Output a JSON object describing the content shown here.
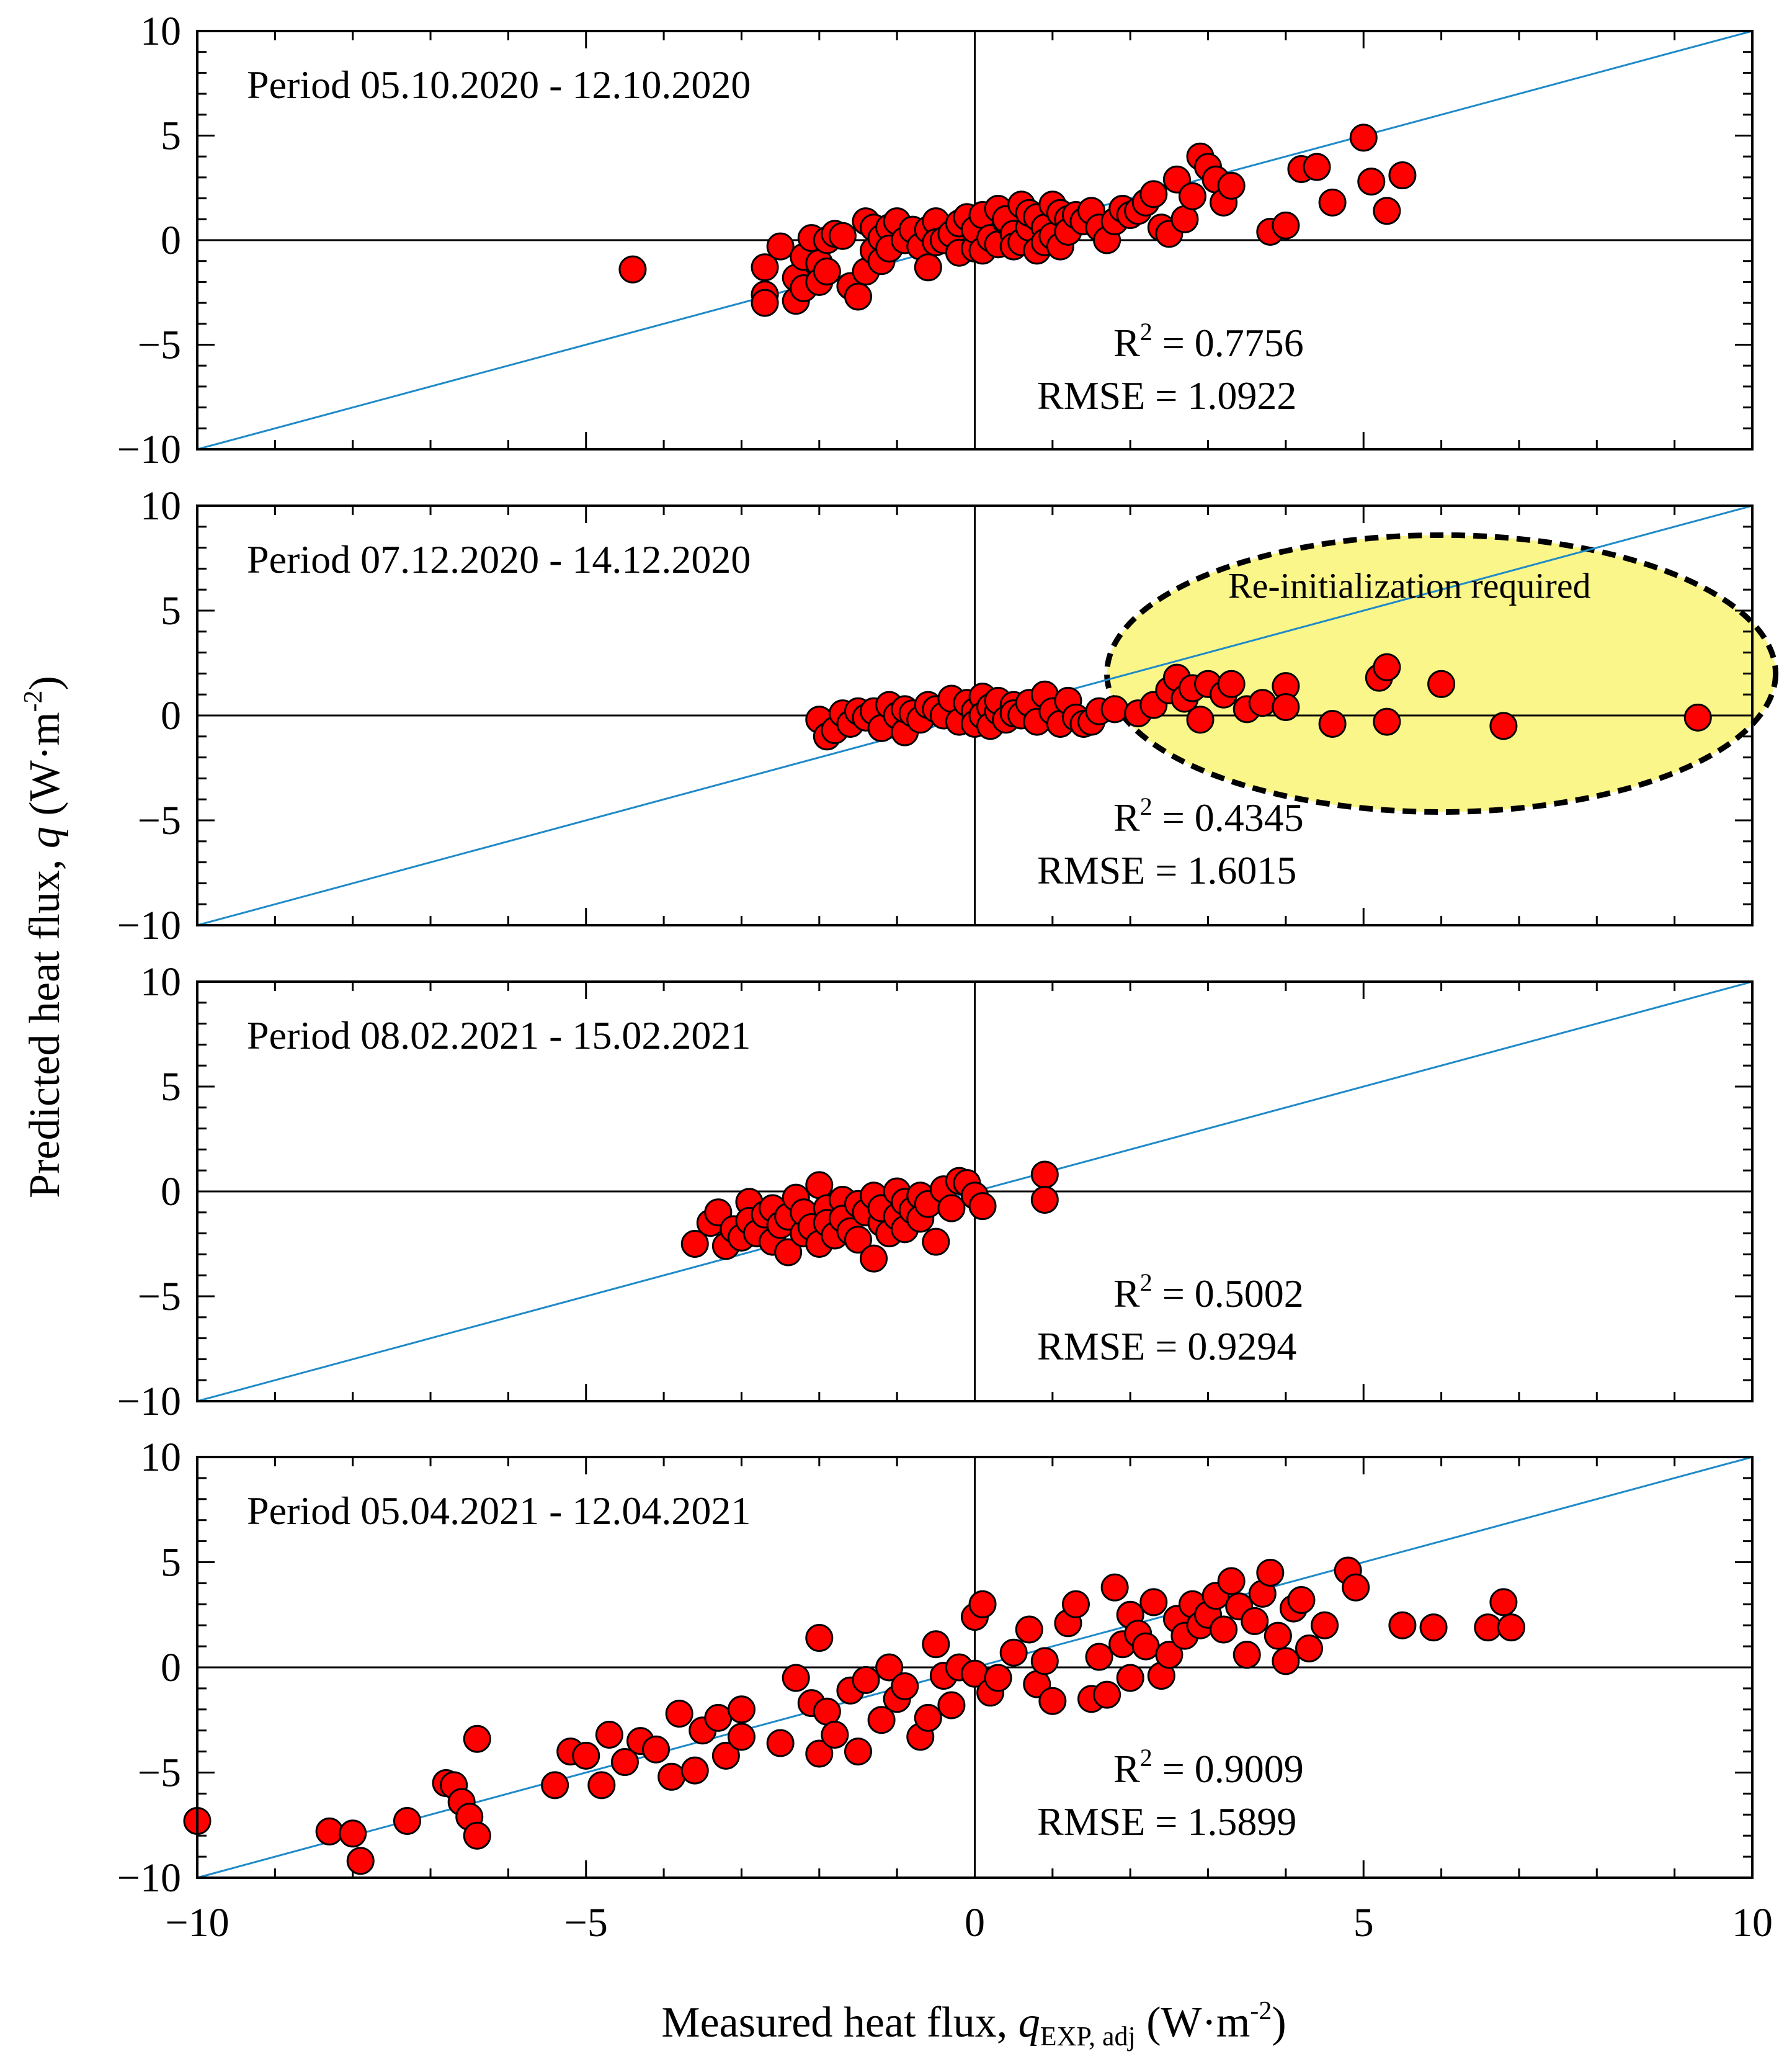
{
  "figure": {
    "ylabel_prefix": "Predicted heat flux, ",
    "ylabel_var": "q",
    "ylabel_unit": " (W·m",
    "ylabel_exp": "-2",
    "ylabel_close": ")",
    "xlabel_prefix": "Measured heat flux, ",
    "xlabel_var": "q",
    "xlabel_sub": "EXP, adj",
    "xlabel_unit": "  (W·m",
    "xlabel_exp": "-2",
    "xlabel_close": ")",
    "x_tick_labels": [
      "−10",
      "−5",
      "0",
      "5",
      "10"
    ],
    "y_tick_labels": [
      "10",
      "5",
      "0",
      "−5",
      "−10"
    ]
  },
  "colors": {
    "marker": "#ff0000",
    "identity_line": "#1f8ac8",
    "callout_fill": "#fbf68a",
    "axis": "#000000"
  },
  "chart_data": [
    {
      "type": "scatter",
      "title": "Period 05.10.2020 - 12.10.2020",
      "xlim": [
        -10,
        10
      ],
      "ylim": [
        -10,
        10
      ],
      "r2_label": "R",
      "r2_exp": "2",
      "r2_value": " = 0.7756",
      "rmse_text": "RMSE = 1.0922",
      "x": [
        -4.4,
        -2.7,
        -2.7,
        -2.7,
        -2.5,
        -2.3,
        -2.3,
        -2.2,
        -2.2,
        -2.1,
        -2.0,
        -2.0,
        -1.9,
        -1.9,
        -1.8,
        -1.7,
        -1.6,
        -1.5,
        -1.4,
        -1.4,
        -1.3,
        -1.3,
        -1.2,
        -1.2,
        -1.1,
        -1.1,
        -1.0,
        -0.9,
        -0.8,
        -0.7,
        -0.6,
        -0.6,
        -0.5,
        -0.5,
        -0.4,
        -0.3,
        -0.2,
        -0.2,
        -0.1,
        0.0,
        0.0,
        0.1,
        0.1,
        0.2,
        0.3,
        0.3,
        0.4,
        0.4,
        0.5,
        0.5,
        0.6,
        0.6,
        0.7,
        0.7,
        0.8,
        0.8,
        0.9,
        0.9,
        1.0,
        1.0,
        1.1,
        1.1,
        1.2,
        1.2,
        1.3,
        1.4,
        1.5,
        1.6,
        1.7,
        1.8,
        1.9,
        2.0,
        2.1,
        2.2,
        2.3,
        2.4,
        2.5,
        2.6,
        2.7,
        2.8,
        2.9,
        3.0,
        3.1,
        3.2,
        3.3,
        3.8,
        4.0,
        4.2,
        4.4,
        4.6,
        5.0,
        5.1,
        5.3,
        5.5
      ],
      "y": [
        -1.4,
        -2.6,
        -3.0,
        -1.3,
        -0.3,
        -2.9,
        -1.8,
        -0.8,
        -2.3,
        0.1,
        -1.1,
        -2.0,
        0.0,
        -1.5,
        0.3,
        0.2,
        -2.2,
        -2.7,
        0.9,
        -1.5,
        0.6,
        -0.5,
        0.1,
        -1.0,
        0.6,
        -0.4,
        0.9,
        0.0,
        0.5,
        -0.3,
        0.5,
        -1.3,
        0.9,
        -0.1,
        0.0,
        0.3,
        -0.6,
        0.8,
        1.1,
        -0.4,
        0.5,
        1.2,
        -0.5,
        0.1,
        1.5,
        -0.2,
        0.9,
        1.0,
        0.3,
        -0.3,
        1.7,
        -0.1,
        0.6,
        1.3,
        -0.5,
        1.1,
        0.6,
        -0.1,
        1.7,
        0.2,
        1.3,
        -0.3,
        1.0,
        0.4,
        1.2,
        0.9,
        1.4,
        0.6,
        0.0,
        0.9,
        1.5,
        1.2,
        1.4,
        1.8,
        2.2,
        0.6,
        0.3,
        2.9,
        1.0,
        2.1,
        4.0,
        3.5,
        2.9,
        1.8,
        2.6,
        0.4,
        0.7,
        3.4,
        3.5,
        1.8,
        4.9,
        2.8,
        1.4,
        3.1
      ]
    },
    {
      "type": "scatter",
      "title": "Period 07.12.2020 - 14.12.2020",
      "xlim": [
        -10,
        10
      ],
      "ylim": [
        -10,
        10
      ],
      "r2_label": "R",
      "r2_exp": "2",
      "r2_value": " = 0.4345",
      "rmse_text": "RMSE = 1.6015",
      "annotation": "Re-initialization required",
      "x": [
        -2.0,
        -1.9,
        -1.8,
        -1.7,
        -1.6,
        -1.5,
        -1.4,
        -1.3,
        -1.2,
        -1.1,
        -1.0,
        -0.9,
        -0.9,
        -0.8,
        -0.7,
        -0.6,
        -0.5,
        -0.4,
        -0.3,
        -0.2,
        -0.1,
        0.0,
        0.0,
        0.1,
        0.1,
        0.2,
        0.2,
        0.3,
        0.3,
        0.4,
        0.5,
        0.5,
        0.6,
        0.7,
        0.8,
        0.9,
        1.0,
        1.1,
        1.2,
        1.3,
        1.4,
        1.5,
        1.6,
        1.8,
        2.1,
        2.3,
        2.5,
        2.6,
        2.7,
        2.8,
        2.9,
        3.0,
        3.2,
        3.3,
        3.5,
        3.7,
        4.0,
        4.0,
        4.6,
        5.2,
        5.3,
        5.3,
        6.0,
        6.8,
        9.3
      ],
      "y": [
        -0.2,
        -1.0,
        -0.7,
        0.1,
        -0.4,
        0.2,
        -0.1,
        0.2,
        -0.6,
        0.5,
        0.0,
        -0.8,
        0.3,
        0.1,
        -0.2,
        0.5,
        0.3,
        0.0,
        0.8,
        -0.3,
        0.6,
        0.2,
        -0.4,
        0.9,
        0.0,
        0.4,
        -0.5,
        0.2,
        0.7,
        -0.2,
        0.5,
        0.1,
        0.0,
        0.6,
        -0.3,
        1.0,
        0.2,
        -0.4,
        0.7,
        -0.1,
        -0.4,
        -0.3,
        0.2,
        0.3,
        0.1,
        0.5,
        1.2,
        1.8,
        0.8,
        1.3,
        -0.2,
        1.5,
        1.0,
        1.5,
        0.3,
        0.6,
        1.4,
        0.4,
        -0.4,
        1.8,
        2.3,
        -0.3,
        1.5,
        -0.5,
        -0.1
      ]
    },
    {
      "type": "scatter",
      "title": "Period 08.02.2021 - 15.02.2021",
      "xlim": [
        -10,
        10
      ],
      "ylim": [
        -10,
        10
      ],
      "r2_label": "R",
      "r2_exp": "2",
      "r2_value": " = 0.5002",
      "rmse_text": "RMSE = 0.9294",
      "x": [
        -3.6,
        -3.4,
        -3.3,
        -3.2,
        -3.1,
        -3.0,
        -2.9,
        -2.9,
        -2.8,
        -2.7,
        -2.6,
        -2.6,
        -2.5,
        -2.4,
        -2.4,
        -2.3,
        -2.2,
        -2.2,
        -2.1,
        -2.0,
        -2.0,
        -1.9,
        -1.9,
        -1.8,
        -1.7,
        -1.7,
        -1.6,
        -1.5,
        -1.5,
        -1.4,
        -1.3,
        -1.3,
        -1.2,
        -1.2,
        -1.1,
        -1.0,
        -1.0,
        -0.9,
        -0.9,
        -0.8,
        -0.7,
        -0.7,
        -0.6,
        -0.5,
        -0.4,
        -0.3,
        -0.2,
        -0.1,
        0.0,
        0.1,
        0.9,
        0.9
      ],
      "y": [
        -2.5,
        -1.5,
        -1.0,
        -2.6,
        -1.8,
        -2.2,
        -0.5,
        -1.4,
        -2.0,
        -1.1,
        -0.8,
        -2.4,
        -1.6,
        -1.2,
        -2.9,
        -0.3,
        -2.0,
        -1.0,
        -1.7,
        0.3,
        -2.5,
        -0.8,
        -1.5,
        -2.1,
        -0.4,
        -1.3,
        -1.9,
        -0.6,
        -2.3,
        -1.0,
        -3.2,
        -0.2,
        -1.5,
        -0.8,
        -2.0,
        0.0,
        -1.2,
        -0.5,
        -1.8,
        -0.9,
        -0.2,
        -1.3,
        -0.6,
        -2.4,
        0.1,
        -0.8,
        0.5,
        0.4,
        -0.2,
        -0.7,
        0.8,
        -0.4
      ]
    },
    {
      "type": "scatter",
      "title": "Period 05.04.2021 - 12.04.2021",
      "xlim": [
        -10,
        10
      ],
      "ylim": [
        -10,
        10
      ],
      "r2_label": "R",
      "r2_exp": "2",
      "r2_value": " = 0.9009",
      "rmse_text": "RMSE = 1.5899",
      "x": [
        -10.0,
        -8.3,
        -8.0,
        -7.9,
        -7.3,
        -6.8,
        -6.7,
        -6.6,
        -6.5,
        -6.4,
        -6.4,
        -5.4,
        -5.2,
        -5.0,
        -4.8,
        -4.7,
        -4.5,
        -4.3,
        -4.1,
        -3.9,
        -3.8,
        -3.6,
        -3.5,
        -3.3,
        -3.2,
        -3.0,
        -3.0,
        -2.5,
        -2.3,
        -2.1,
        -2.0,
        -2.0,
        -1.9,
        -1.8,
        -1.6,
        -1.5,
        -1.4,
        -1.2,
        -1.1,
        -1.0,
        -0.9,
        -0.7,
        -0.6,
        -0.5,
        -0.4,
        -0.3,
        -0.2,
        0.0,
        0.0,
        0.1,
        0.2,
        0.3,
        0.5,
        0.7,
        0.8,
        0.9,
        1.0,
        1.2,
        1.3,
        1.5,
        1.6,
        1.7,
        1.8,
        1.9,
        2.0,
        2.0,
        2.1,
        2.2,
        2.3,
        2.4,
        2.5,
        2.6,
        2.7,
        2.8,
        2.9,
        3.0,
        3.1,
        3.2,
        3.3,
        3.4,
        3.5,
        3.6,
        3.7,
        3.8,
        3.9,
        4.0,
        4.1,
        4.2,
        4.3,
        4.5,
        4.8,
        4.9,
        5.5,
        5.9,
        6.6,
        6.8,
        6.9
      ],
      "y": [
        -7.3,
        -7.8,
        -7.9,
        -9.2,
        -7.3,
        -5.5,
        -5.6,
        -6.4,
        -7.1,
        -8.0,
        -3.4,
        -5.6,
        -4.0,
        -4.2,
        -5.6,
        -3.2,
        -4.5,
        -3.5,
        -3.9,
        -5.2,
        -2.2,
        -4.9,
        -3.0,
        -2.4,
        -4.2,
        -2.0,
        -3.3,
        -3.6,
        -0.5,
        -1.7,
        -4.1,
        1.4,
        -2.1,
        -3.2,
        -1.1,
        -4.0,
        -0.6,
        -2.5,
        0.0,
        -1.5,
        -0.9,
        -3.3,
        -2.4,
        1.1,
        -0.4,
        -1.8,
        0.0,
        -0.3,
        2.4,
        3.0,
        -1.2,
        -0.5,
        0.7,
        1.8,
        -0.8,
        0.3,
        -1.6,
        2.1,
        3.0,
        -1.5,
        0.5,
        -1.3,
        3.8,
        1.1,
        2.5,
        -0.5,
        1.6,
        1.0,
        3.1,
        -0.4,
        0.6,
        2.3,
        1.5,
        3.0,
        2.0,
        2.5,
        3.4,
        1.8,
        4.1,
        2.9,
        0.6,
        2.2,
        3.5,
        4.5,
        1.5,
        0.3,
        2.8,
        3.2,
        0.9,
        2.0,
        4.6,
        3.8,
        2.0,
        1.9,
        1.9,
        3.1,
        1.9
      ]
    }
  ]
}
